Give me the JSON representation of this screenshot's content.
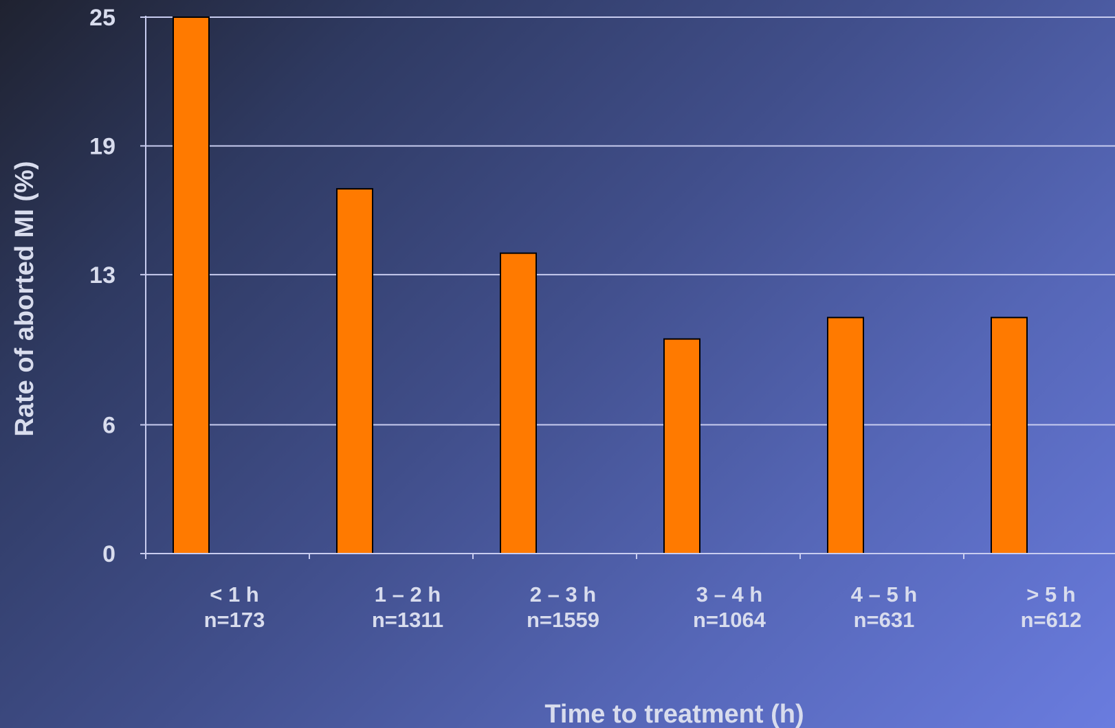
{
  "chart_data": {
    "type": "bar",
    "categories": [
      "< 1 h",
      "1 – 2 h",
      "2 – 3 h",
      "3 – 4 h",
      "4 – 5 h",
      "> 5 h"
    ],
    "category_sublabels": [
      "n=173",
      "n=1311",
      "n=1559",
      "n=1064",
      "n=631",
      "n=612"
    ],
    "values": [
      25,
      17,
      14,
      10,
      11,
      11
    ],
    "xlabel": "Time to treatment (h)",
    "ylabel": "Rate of aborted MI (%)",
    "ylim": [
      0,
      25
    ],
    "yticks": [
      0,
      6,
      13,
      19,
      25
    ],
    "grid": true,
    "bar_color": "#ff7a00",
    "bar_edge_color": "#000000",
    "grid_color": "#c9cdf0",
    "text_color": "#d8dced"
  }
}
